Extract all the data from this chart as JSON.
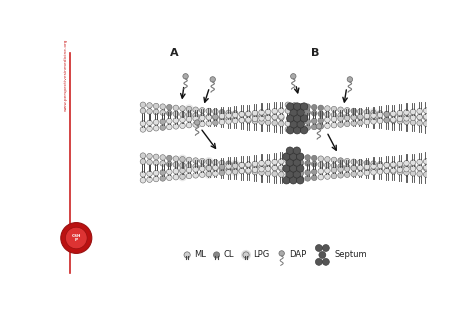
{
  "fig_width": 4.74,
  "fig_height": 3.15,
  "dpi": 100,
  "bg_color": "#ffffff",
  "sidebar_text": "www.perspectivesinmedicine.org",
  "sidebar_color": "#cc2222",
  "label_A": "A",
  "label_B": "B",
  "ml_color": "#d8d8d8",
  "cl_color": "#888888",
  "lpg_color": "#c0c0c0",
  "dap_head_color": "#aaaaaa",
  "septum_color": "#555555",
  "arrow_color": "#111111",
  "membrane_bg": "#f0f0f0"
}
